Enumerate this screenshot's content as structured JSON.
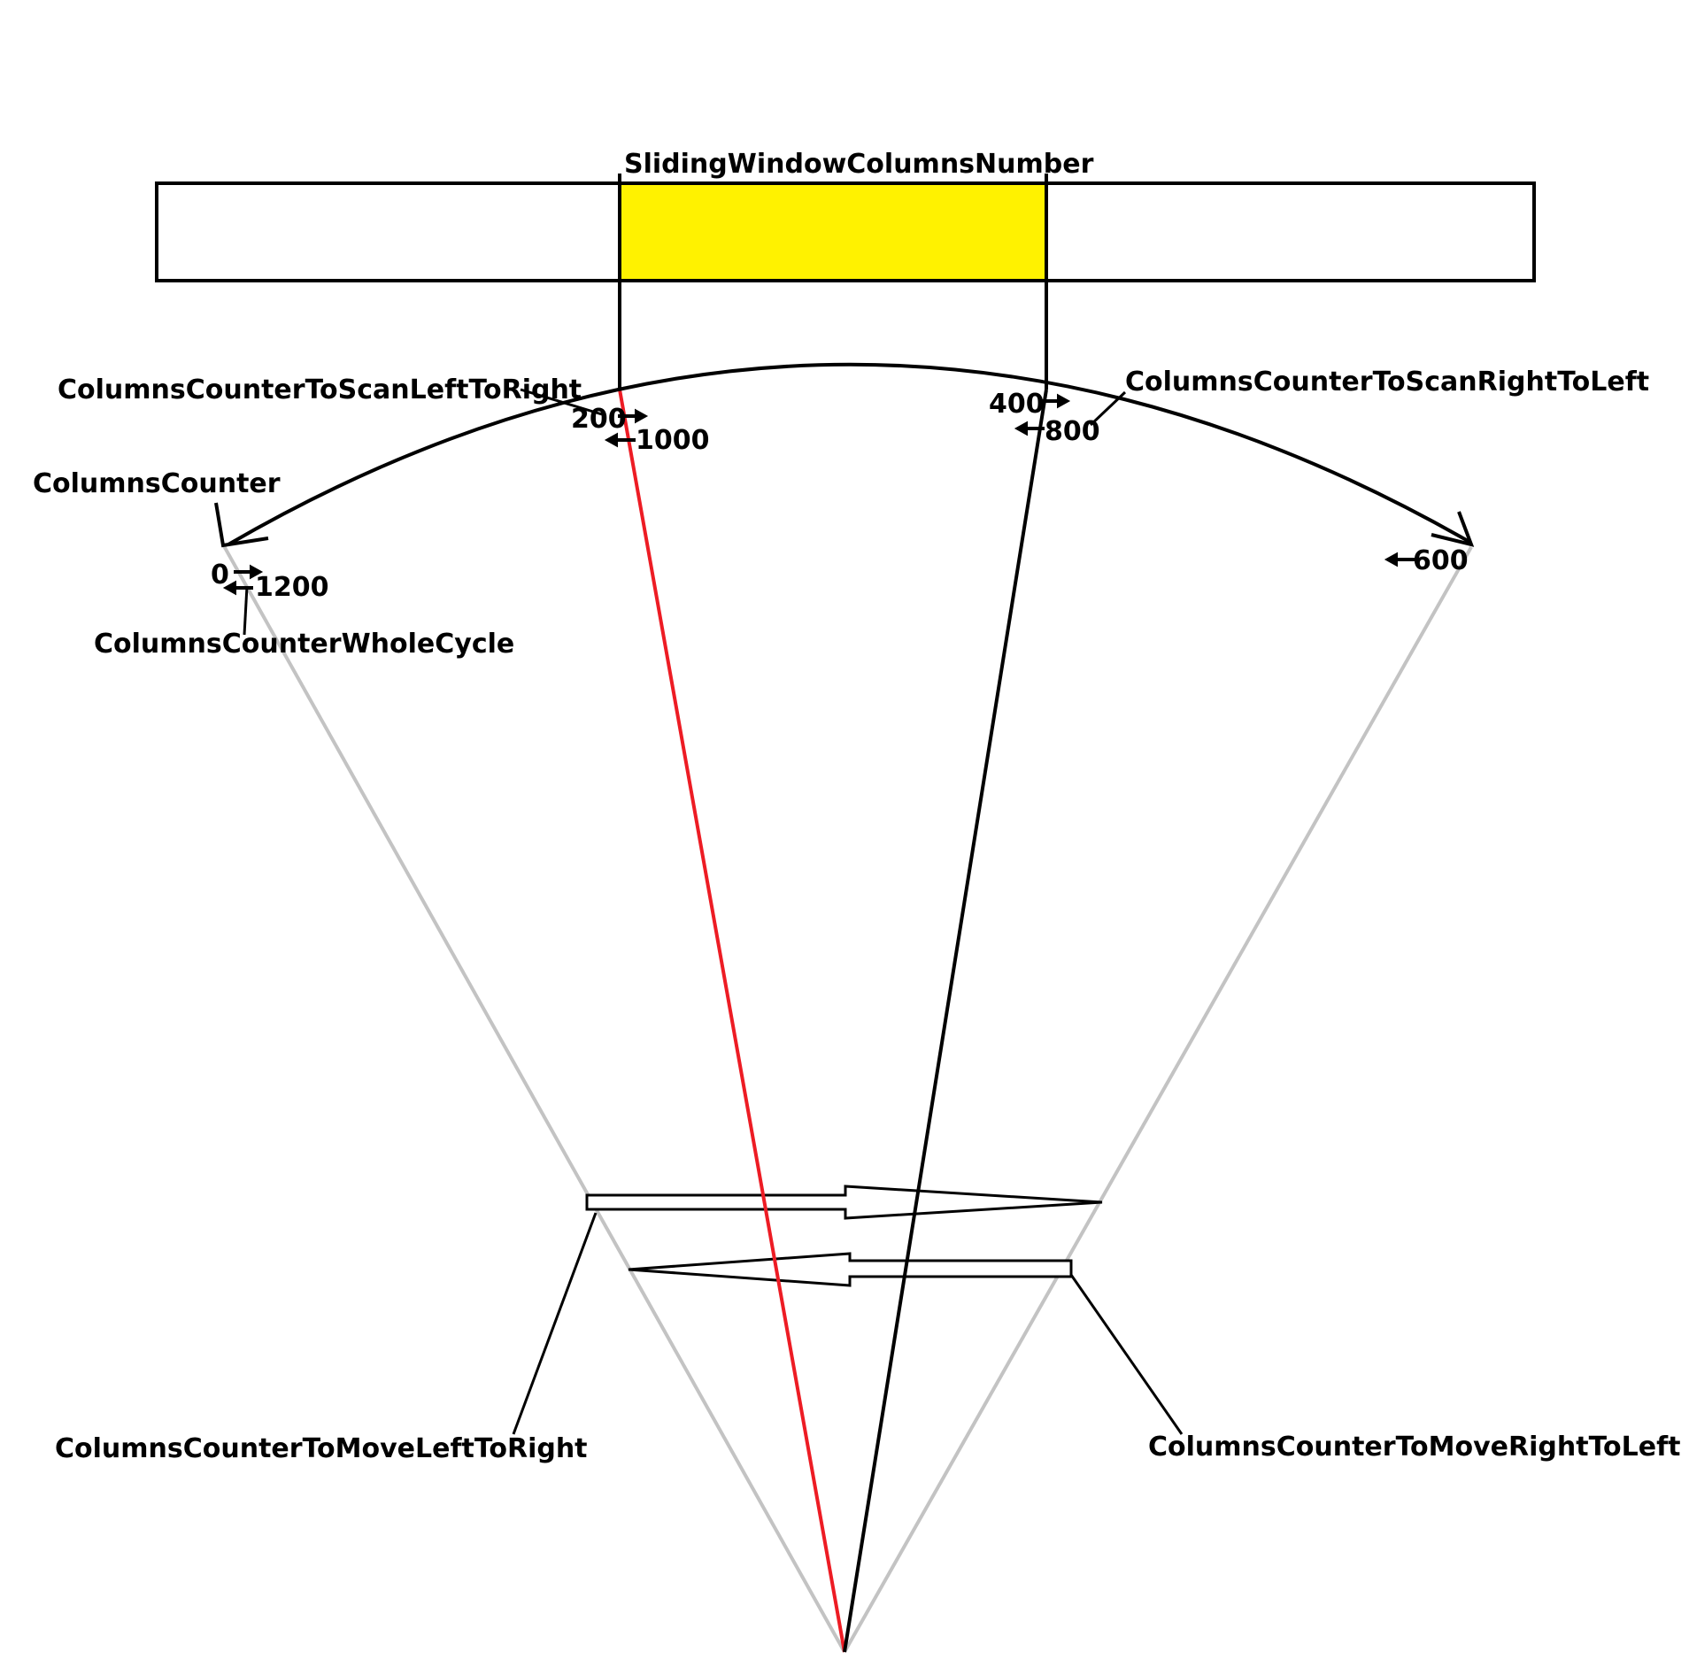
{
  "labels": {
    "sliding_window": "SlidingWindowColumnsNumber",
    "scan_left_to_right": "ColumnsCounterToScanLeftToRight",
    "scan_right_to_left": "ColumnsCounterToScanRightToLeft",
    "columns_counter": "ColumnsCounter",
    "whole_cycle": "ColumnsCounterWholeCycle",
    "move_left_to_right": "ColumnsCounterToMoveLeftToRight",
    "move_right_to_left": "ColumnsCounterToMoveRightToLeft"
  },
  "values": {
    "v0": "0",
    "v200": "200",
    "v400": "400",
    "v600": "600",
    "v800": "800",
    "v1000": "1000",
    "v1200": "1200"
  },
  "colors": {
    "window_fill": "#FFF200",
    "red_beam": "#ED1C24",
    "grey_beam": "#C3C3C3",
    "ink": "#000000"
  }
}
